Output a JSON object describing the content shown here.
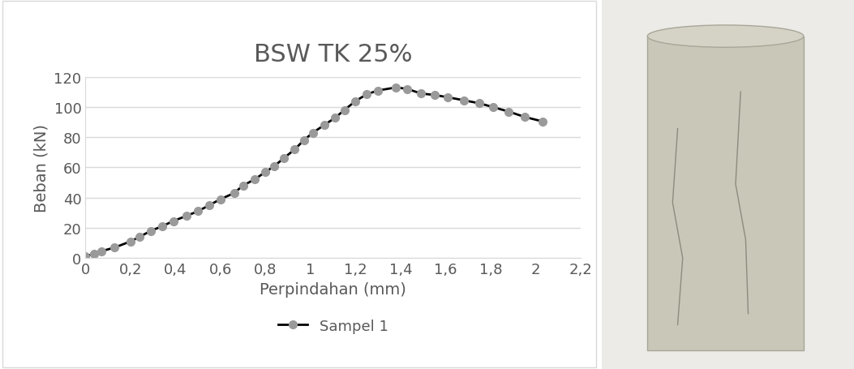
{
  "chart_data": {
    "type": "line",
    "title": "BSW TK 25%",
    "x_label": "Perpindahan (mm)",
    "y_label": "Beban (kN)",
    "series": [
      {
        "name": "Sampel 1",
        "color": "#000000",
        "marker": "o",
        "line_style": "solid",
        "x": [
          0,
          0.04,
          0.07,
          0.13,
          0.2,
          0.24,
          0.29,
          0.34,
          0.39,
          0.45,
          0.5,
          0.55,
          0.6,
          0.66,
          0.7,
          0.75,
          0.8,
          0.84,
          0.88,
          0.93,
          0.97,
          1.01,
          1.06,
          1.11,
          1.15,
          1.2,
          1.25,
          1.3,
          1.38,
          1.43,
          1.49,
          1.55,
          1.61,
          1.68,
          1.75,
          1.81,
          1.88,
          1.95,
          2.03
        ],
        "values": [
          1,
          3,
          4.5,
          7,
          11,
          14,
          18,
          21,
          24.5,
          28,
          31,
          35,
          39,
          43,
          48,
          52,
          57,
          61,
          66,
          72,
          78,
          83,
          88,
          93,
          98,
          104,
          108.5,
          111,
          113,
          112,
          109,
          108,
          106.5,
          104.5,
          102.5,
          100,
          97,
          93.5,
          90.5
        ]
      }
    ],
    "xlim": [
      0,
      2.2
    ],
    "xticks": [
      0,
      {
        "value": 0.2,
        "label": "0,2"
      },
      {
        "value": 0.4,
        "label": "0,4"
      },
      {
        "value": 0.6,
        "label": "0,6"
      },
      {
        "value": 0.8,
        "label": "0,8"
      },
      1,
      {
        "value": 1.2,
        "label": "1,2"
      },
      {
        "value": 1.4,
        "label": "1,4"
      },
      {
        "value": 1.6,
        "label": "1,6"
      },
      {
        "value": 1.8,
        "label": "1,8"
      },
      2,
      {
        "value": 2.2,
        "label": "2,2"
      }
    ],
    "ylim": [
      0,
      120
    ],
    "yticks": [
      0,
      20,
      40,
      60,
      80,
      100,
      120
    ],
    "grid": true,
    "legend": "bottom"
  }
}
